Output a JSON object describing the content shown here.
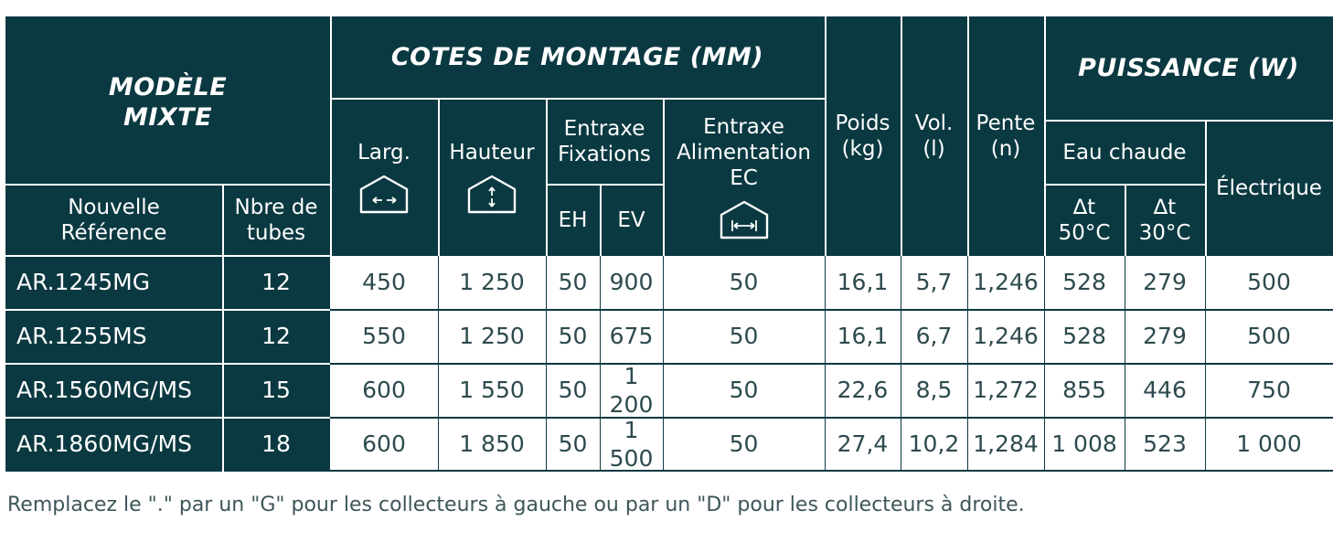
{
  "header": {
    "modele": "MODÈLE MIXTE",
    "cotes": "COTES DE MONTAGE (MM)",
    "puissance": "PUISSANCE (W)",
    "nouvelle_ref": "Nouvelle Référence",
    "nbre_tubes": "Nbre de tubes",
    "larg": "Larg.",
    "hauteur": "Hauteur",
    "entraxe_fix": "Entraxe Fixations",
    "eh": "EH",
    "ev": "EV",
    "entraxe_alim": "Entraxe Alimentation EC",
    "poids": "Poids (kg)",
    "vol": "Vol. (l)",
    "pente": "Pente (n)",
    "eau_chaude": "Eau chaude",
    "electrique": "Électrique",
    "dt50_sym": "∆t",
    "dt50_val": "50°C",
    "dt30_sym": "∆t",
    "dt30_val": "30°C"
  },
  "icons": {
    "larg": "house-width-icon",
    "hauteur": "house-height-icon",
    "alim": "house-inlet-spacing-icon"
  },
  "rows": [
    {
      "ref": "AR.1245MG",
      "tubes": "12",
      "larg": "450",
      "hauteur": "1 250",
      "eh": "50",
      "ev": "900",
      "alim": "50",
      "poids": "16,1",
      "vol": "5,7",
      "pente": "1,246",
      "dt50": "528",
      "dt30": "279",
      "elec": "500"
    },
    {
      "ref": "AR.1255MS",
      "tubes": "12",
      "larg": "550",
      "hauteur": "1 250",
      "eh": "50",
      "ev": "675",
      "alim": "50",
      "poids": "16,1",
      "vol": "6,7",
      "pente": "1,246",
      "dt50": "528",
      "dt30": "279",
      "elec": "500"
    },
    {
      "ref": "AR.1560MG/MS",
      "tubes": "15",
      "larg": "600",
      "hauteur": "1 550",
      "eh": "50",
      "ev": "1 200",
      "alim": "50",
      "poids": "22,6",
      "vol": "8,5",
      "pente": "1,272",
      "dt50": "855",
      "dt30": "446",
      "elec": "750"
    },
    {
      "ref": "AR.1860MG/MS",
      "tubes": "18",
      "larg": "600",
      "hauteur": "1 850",
      "eh": "50",
      "ev": "1 500",
      "alim": "50",
      "poids": "27,4",
      "vol": "10,2",
      "pente": "1,284",
      "dt50": "1 008",
      "dt30": "523",
      "elec": "1 000"
    }
  ],
  "footnote": "Remplacez le \".\" par un \"G\" pour les collecteurs à gauche ou par un \"D\" pour les collecteurs à droite.",
  "colors": {
    "header_bg": "#0b3941",
    "header_text": "#ffffff",
    "body_text": "#2e4a4e"
  }
}
